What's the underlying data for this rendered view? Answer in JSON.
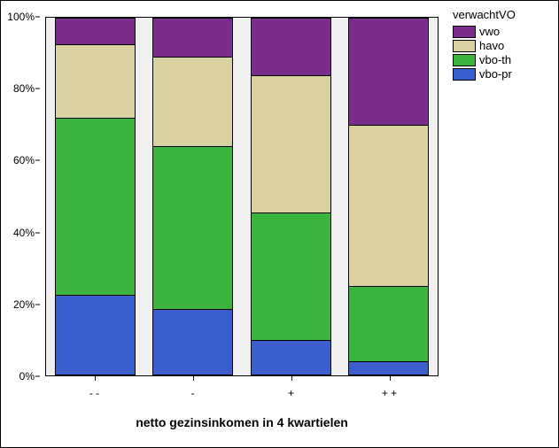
{
  "chart": {
    "type": "stacked-bar-100",
    "x_title": "netto gezinsinkomen in 4 kwartielen",
    "legend_title": "verwachtVO",
    "background_color": "#f0f0f0",
    "ylim": [
      0,
      100
    ],
    "ytick_step": 20,
    "y_tick_labels": [
      "0%",
      "20%",
      "40%",
      "60%",
      "80%",
      "100%"
    ],
    "categories": [
      "- -",
      "-",
      "+",
      "+ +"
    ],
    "series": [
      {
        "key": "vbo-pr",
        "label": "vbo-pr",
        "color": "#3a5fcd"
      },
      {
        "key": "vbo-th",
        "label": "vbo-th",
        "color": "#3cb33c"
      },
      {
        "key": "havo",
        "label": "havo",
        "color": "#d9d1a0"
      },
      {
        "key": "vwo",
        "label": "vwo",
        "color": "#7b2d8e"
      }
    ],
    "legend_order": [
      "vwo",
      "havo",
      "vbo-th",
      "vbo-pr"
    ],
    "data": {
      "- -": {
        "vbo-pr": 22.5,
        "vbo-th": 49.5,
        "havo": 20.5,
        "vwo": 7.5
      },
      "-": {
        "vbo-pr": 18.5,
        "vbo-th": 45.5,
        "havo": 25.0,
        "vwo": 11.0
      },
      "+": {
        "vbo-pr": 10.0,
        "vbo-th": 35.5,
        "havo": 38.5,
        "vwo": 16.0
      },
      "+ +": {
        "vbo-pr": 4.0,
        "vbo-th": 21.0,
        "havo": 45.0,
        "vwo": 30.0
      }
    },
    "title_fontsize": 14,
    "tick_fontsize": 12
  }
}
